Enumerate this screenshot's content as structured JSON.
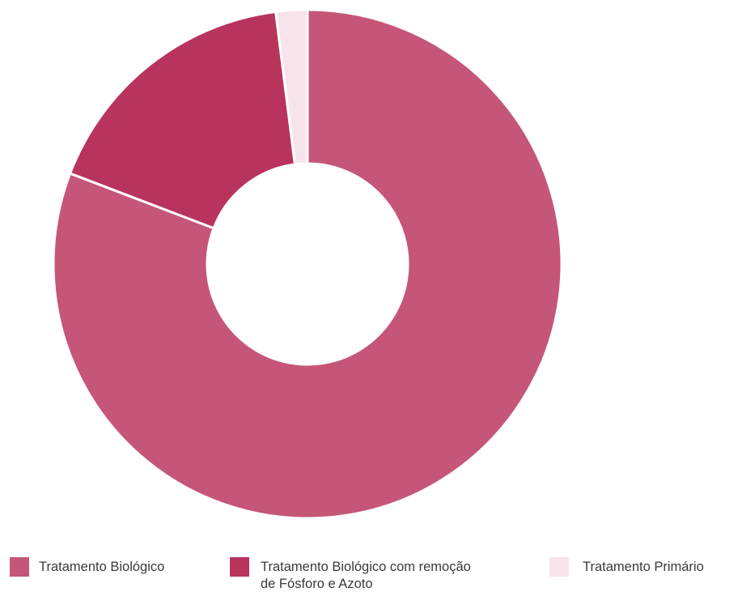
{
  "chart_data": {
    "type": "pie",
    "donut": true,
    "legend_position": "bottom",
    "series": [
      {
        "label": "Tratamento Biológico",
        "value": 80.8,
        "color": "#c55677"
      },
      {
        "label": "Tratamento Biológico com remoção de Fósforo e Azoto",
        "label_lines": [
          "Tratamento Biológico com remoção",
          "de Fósforo e Azoto"
        ],
        "value": 17.2,
        "color": "#b8345c"
      },
      {
        "label": "Tratamento Primário",
        "value": 2.0,
        "color": "#f7e3ea"
      }
    ]
  }
}
